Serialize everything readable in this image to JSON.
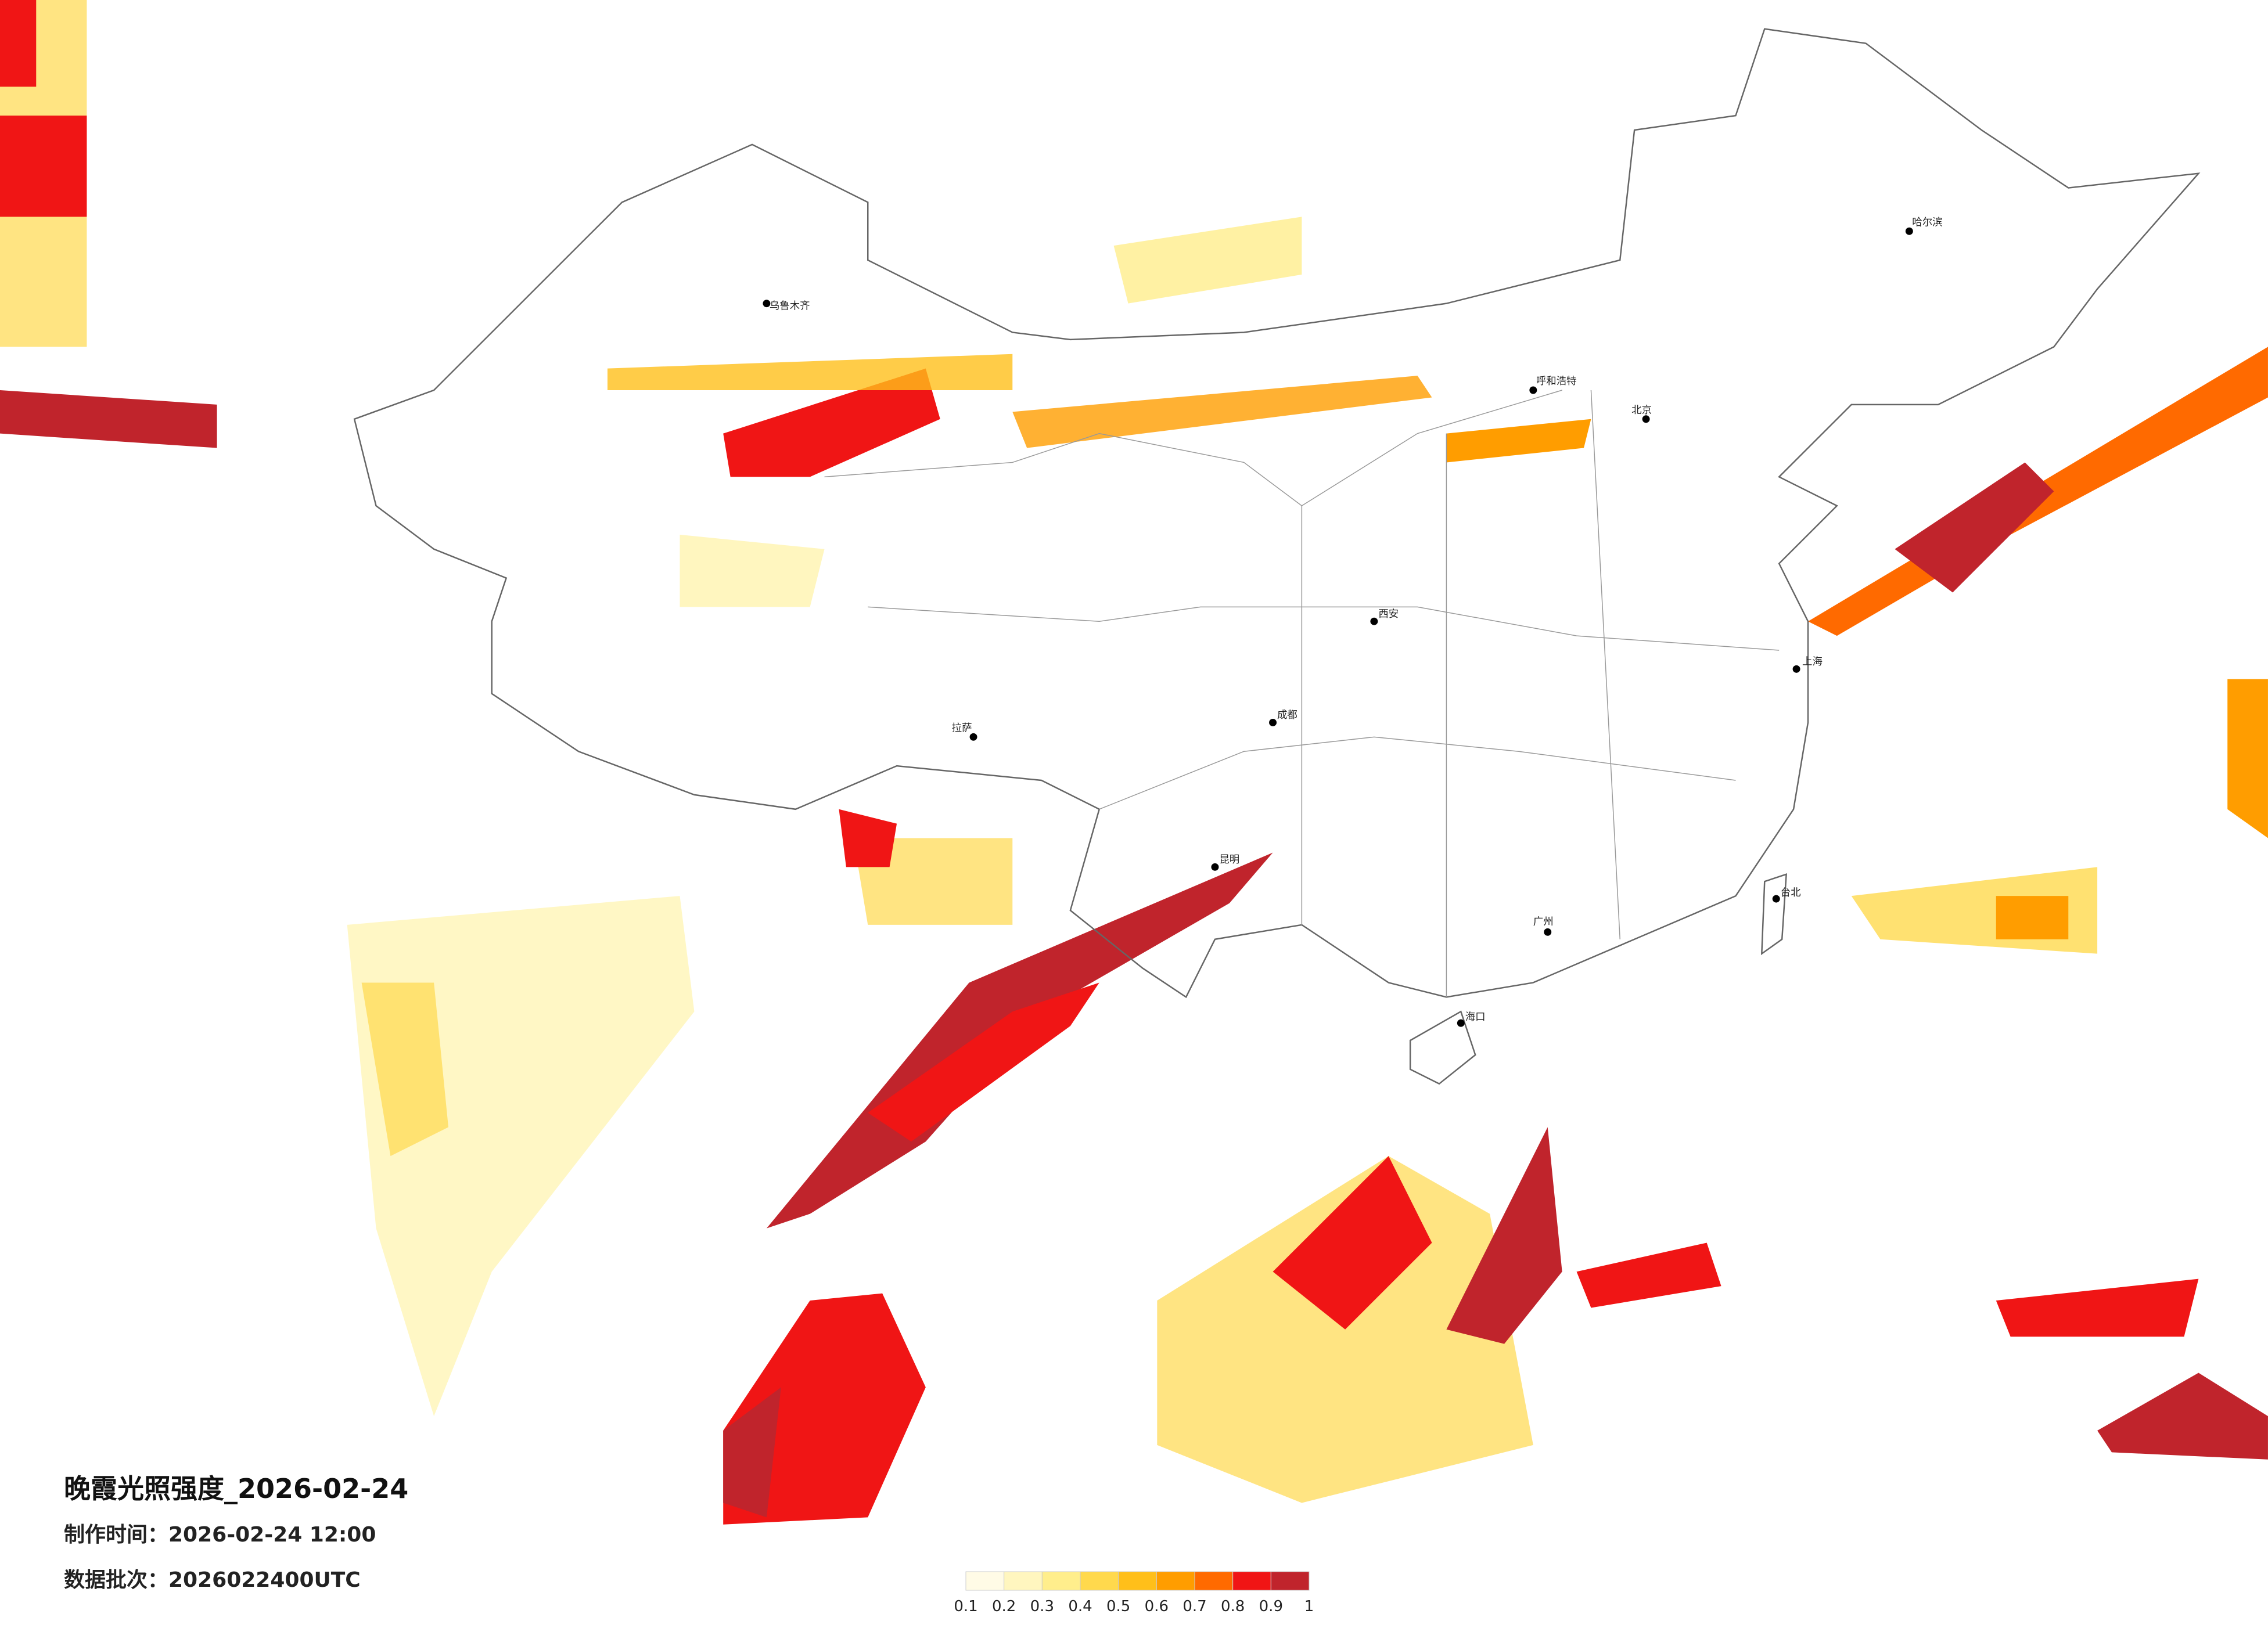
{
  "title": "晚霞光照强度_2026-02-24",
  "made_time": "制作时间：2026-02-24 12:00",
  "batch": "数据批次：2026022400UTC",
  "legend": {
    "ticks": [
      0.1,
      0.2,
      0.3,
      0.4,
      0.5,
      0.6,
      0.7,
      0.8,
      0.9,
      1
    ],
    "colors": [
      "#fffbe6",
      "#fff6bf",
      "#ffee8c",
      "#ffd94d",
      "#ffbf1a",
      "#ff9d00",
      "#ff6a00",
      "#f01515",
      "#c0242c"
    ]
  },
  "cities": [
    "北京",
    "上海",
    "广州",
    "乌鲁木齐",
    "哈尔滨",
    "拉萨",
    "成都",
    "西安",
    "昆明",
    "海口",
    "台北",
    "呼和浩特"
  ]
}
